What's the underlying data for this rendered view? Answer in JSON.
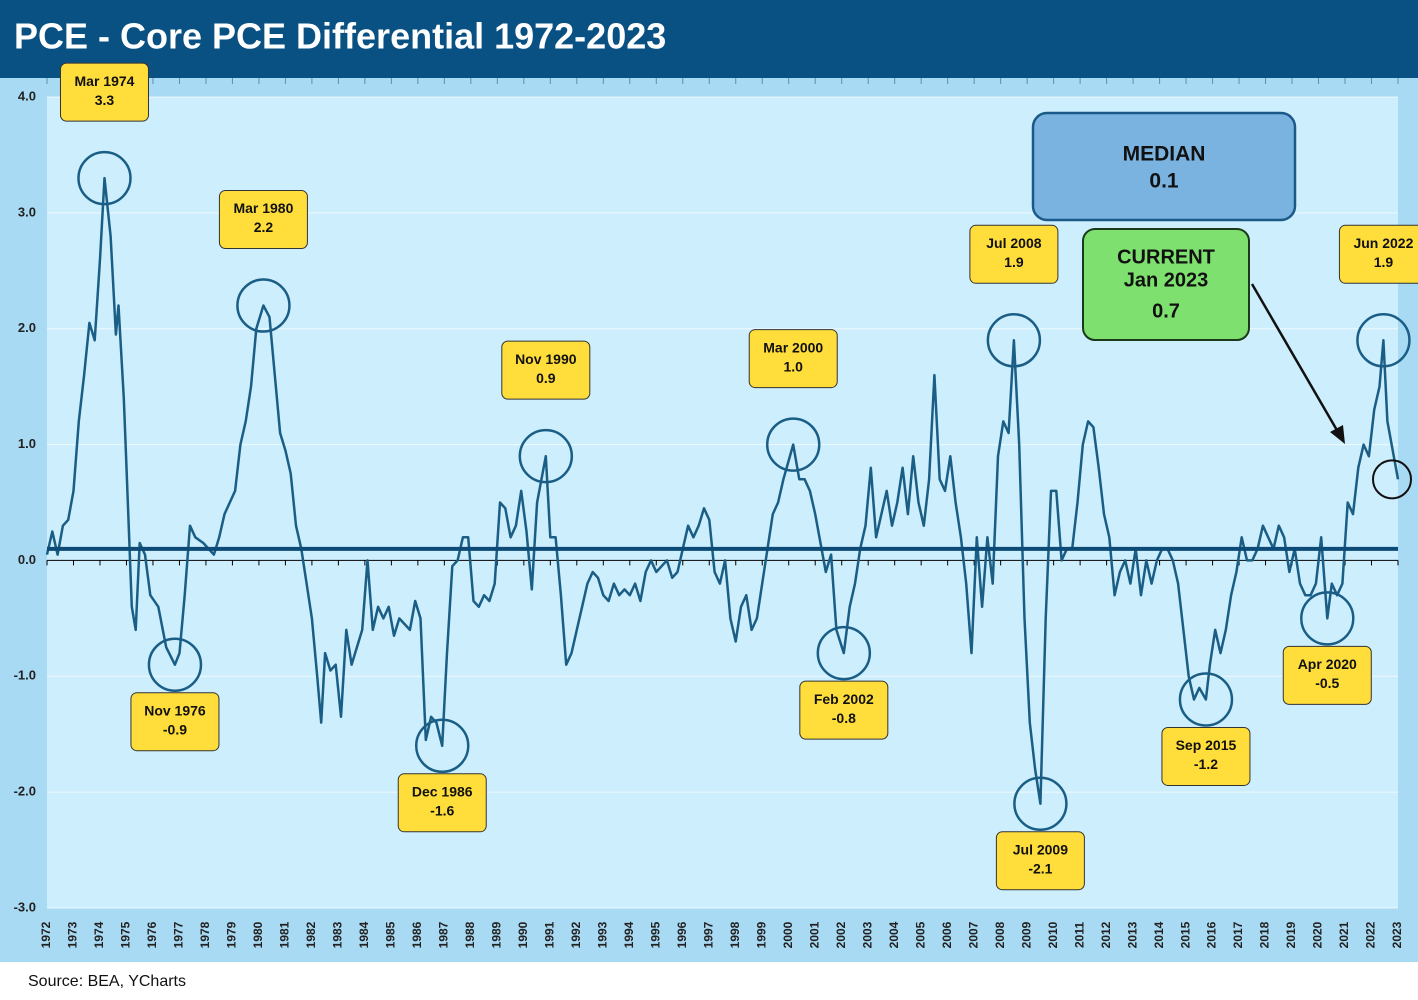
{
  "chart_data": {
    "type": "line",
    "title": "PCE - Core PCE Differential 1972-2023",
    "source": "Source: BEA, YCharts",
    "xlim": [
      1972,
      2023
    ],
    "xticks": [
      1972,
      1973,
      1974,
      1975,
      1976,
      1977,
      1978,
      1979,
      1980,
      1981,
      1982,
      1983,
      1984,
      1985,
      1986,
      1987,
      1988,
      1989,
      1990,
      1991,
      1992,
      1993,
      1994,
      1995,
      1996,
      1997,
      1998,
      1999,
      2000,
      2001,
      2002,
      2003,
      2004,
      2005,
      2006,
      2007,
      2008,
      2009,
      2010,
      2011,
      2012,
      2013,
      2014,
      2015,
      2016,
      2017,
      2018,
      2019,
      2020,
      2021,
      2022,
      2023
    ],
    "ylim": [
      -3,
      4
    ],
    "yticks": [
      {
        "value": -3,
        "label": "-3.0"
      },
      {
        "value": -2,
        "label": "-2.0"
      },
      {
        "value": -1,
        "label": "-1.0"
      },
      {
        "value": 0,
        "label": "0.0"
      },
      {
        "value": 1,
        "label": "1.0"
      },
      {
        "value": 2,
        "label": "2.0"
      },
      {
        "value": 3,
        "label": "3.0"
      },
      {
        "value": 4,
        "label": "4.0"
      }
    ],
    "series": [
      {
        "color": "#1a5e86",
        "x": [
          1972.0,
          1972.2,
          1972.4,
          1972.6,
          1972.8,
          1973.0,
          1973.2,
          1973.4,
          1973.6,
          1973.8,
          1974.0,
          1974.17,
          1974.4,
          1974.6,
          1974.7,
          1974.9,
          1975.0,
          1975.2,
          1975.35,
          1975.5,
          1975.7,
          1975.9,
          1976.2,
          1976.5,
          1976.83,
          1977.0,
          1977.2,
          1977.4,
          1977.6,
          1977.9,
          1978.1,
          1978.3,
          1978.5,
          1978.7,
          1978.9,
          1979.1,
          1979.3,
          1979.5,
          1979.7,
          1979.9,
          1980.17,
          1980.4,
          1980.6,
          1980.8,
          1981.0,
          1981.2,
          1981.4,
          1981.6,
          1981.8,
          1982.0,
          1982.2,
          1982.35,
          1982.5,
          1982.7,
          1982.9,
          1983.1,
          1983.3,
          1983.5,
          1983.7,
          1983.9,
          1984.1,
          1984.3,
          1984.5,
          1984.7,
          1984.9,
          1985.1,
          1985.3,
          1985.5,
          1985.7,
          1985.9,
          1986.1,
          1986.3,
          1986.5,
          1986.7,
          1986.92,
          1987.1,
          1987.3,
          1987.5,
          1987.7,
          1987.9,
          1988.1,
          1988.3,
          1988.5,
          1988.7,
          1988.9,
          1989.1,
          1989.3,
          1989.5,
          1989.7,
          1989.9,
          1990.1,
          1990.3,
          1990.5,
          1990.83,
          1991.0,
          1991.2,
          1991.4,
          1991.6,
          1991.8,
          1992.0,
          1992.2,
          1992.4,
          1992.6,
          1992.8,
          1993.0,
          1993.2,
          1993.4,
          1993.6,
          1993.8,
          1994.0,
          1994.2,
          1994.4,
          1994.6,
          1994.8,
          1995.0,
          1995.2,
          1995.4,
          1995.6,
          1995.8,
          1996.0,
          1996.2,
          1996.4,
          1996.6,
          1996.8,
          1997.0,
          1997.2,
          1997.4,
          1997.6,
          1997.8,
          1998.0,
          1998.2,
          1998.4,
          1998.6,
          1998.8,
          1999.0,
          1999.2,
          1999.4,
          1999.6,
          1999.8,
          2000.17,
          2000.4,
          2000.6,
          2000.8,
          2001.0,
          2001.2,
          2001.4,
          2001.6,
          2001.8,
          2002.08,
          2002.3,
          2002.5,
          2002.7,
          2002.9,
          2003.1,
          2003.3,
          2003.5,
          2003.7,
          2003.9,
          2004.1,
          2004.3,
          2004.5,
          2004.7,
          2004.9,
          2005.1,
          2005.3,
          2005.5,
          2005.7,
          2005.9,
          2006.1,
          2006.3,
          2006.5,
          2006.7,
          2006.9,
          2007.1,
          2007.3,
          2007.5,
          2007.7,
          2007.9,
          2008.1,
          2008.3,
          2008.5,
          2008.7,
          2008.9,
          2009.1,
          2009.3,
          2009.5,
          2009.7,
          2009.9,
          2010.1,
          2010.3,
          2010.5,
          2010.7,
          2010.9,
          2011.1,
          2011.3,
          2011.5,
          2011.7,
          2011.9,
          2012.1,
          2012.3,
          2012.5,
          2012.7,
          2012.9,
          2013.1,
          2013.3,
          2013.5,
          2013.7,
          2013.9,
          2014.1,
          2014.3,
          2014.5,
          2014.7,
          2014.9,
          2015.1,
          2015.3,
          2015.5,
          2015.75,
          2015.9,
          2016.1,
          2016.3,
          2016.5,
          2016.7,
          2016.9,
          2017.1,
          2017.3,
          2017.5,
          2017.7,
          2017.9,
          2018.1,
          2018.3,
          2018.5,
          2018.7,
          2018.9,
          2019.1,
          2019.3,
          2019.5,
          2019.7,
          2019.9,
          2020.1,
          2020.33,
          2020.5,
          2020.7,
          2020.9,
          2021.1,
          2021.3,
          2021.5,
          2021.7,
          2021.9,
          2022.1,
          2022.3,
          2022.45,
          2022.6,
          2022.8,
          2023.0
        ],
        "values": [
          0.05,
          0.25,
          0.05,
          0.3,
          0.35,
          0.6,
          1.2,
          1.6,
          2.05,
          1.9,
          2.6,
          3.3,
          2.8,
          1.95,
          2.2,
          1.4,
          0.8,
          -0.4,
          -0.6,
          0.15,
          0.05,
          -0.3,
          -0.4,
          -0.75,
          -0.9,
          -0.8,
          -0.3,
          0.3,
          0.2,
          0.15,
          0.1,
          0.05,
          0.2,
          0.4,
          0.5,
          0.6,
          1.0,
          1.2,
          1.5,
          2.0,
          2.2,
          2.1,
          1.6,
          1.1,
          0.95,
          0.75,
          0.3,
          0.1,
          -0.2,
          -0.5,
          -1.0,
          -1.4,
          -0.8,
          -0.95,
          -0.9,
          -1.35,
          -0.6,
          -0.9,
          -0.75,
          -0.6,
          0.0,
          -0.6,
          -0.4,
          -0.5,
          -0.4,
          -0.65,
          -0.5,
          -0.55,
          -0.6,
          -0.35,
          -0.5,
          -1.55,
          -1.35,
          -1.4,
          -1.6,
          -0.8,
          -0.05,
          0.0,
          0.2,
          0.2,
          -0.35,
          -0.4,
          -0.3,
          -0.35,
          -0.2,
          0.5,
          0.45,
          0.2,
          0.3,
          0.6,
          0.25,
          -0.25,
          0.5,
          0.9,
          0.2,
          0.2,
          -0.3,
          -0.9,
          -0.8,
          -0.6,
          -0.4,
          -0.2,
          -0.1,
          -0.15,
          -0.3,
          -0.35,
          -0.2,
          -0.3,
          -0.25,
          -0.3,
          -0.2,
          -0.35,
          -0.1,
          0.0,
          -0.1,
          -0.05,
          0.0,
          -0.15,
          -0.1,
          0.1,
          0.3,
          0.2,
          0.3,
          0.45,
          0.35,
          -0.1,
          -0.2,
          0.0,
          -0.5,
          -0.7,
          -0.4,
          -0.3,
          -0.6,
          -0.5,
          -0.2,
          0.1,
          0.4,
          0.5,
          0.7,
          1.0,
          0.7,
          0.7,
          0.6,
          0.4,
          0.15,
          -0.1,
          0.05,
          -0.6,
          -0.8,
          -0.4,
          -0.2,
          0.1,
          0.3,
          0.8,
          0.2,
          0.4,
          0.6,
          0.3,
          0.5,
          0.8,
          0.4,
          0.9,
          0.5,
          0.3,
          0.7,
          1.6,
          0.7,
          0.6,
          0.9,
          0.5,
          0.2,
          -0.2,
          -0.8,
          0.2,
          -0.4,
          0.2,
          -0.2,
          0.9,
          1.2,
          1.1,
          1.9,
          1.0,
          -0.5,
          -1.4,
          -1.8,
          -2.1,
          -0.5,
          0.6,
          0.6,
          0.0,
          0.1,
          0.1,
          0.5,
          1.0,
          1.2,
          1.15,
          0.8,
          0.4,
          0.2,
          -0.3,
          -0.1,
          0.0,
          -0.2,
          0.1,
          -0.3,
          0.0,
          -0.2,
          0.0,
          0.1,
          0.1,
          0.0,
          -0.2,
          -0.6,
          -1.0,
          -1.2,
          -1.1,
          -1.2,
          -0.9,
          -0.6,
          -0.8,
          -0.6,
          -0.3,
          -0.1,
          0.2,
          0.0,
          0.0,
          0.1,
          0.3,
          0.2,
          0.1,
          0.3,
          0.2,
          -0.1,
          0.1,
          -0.2,
          -0.3,
          -0.3,
          -0.2,
          0.2,
          -0.5,
          -0.2,
          -0.3,
          -0.2,
          0.5,
          0.4,
          0.8,
          1.0,
          0.9,
          1.3,
          1.5,
          1.9,
          1.2,
          0.95,
          0.7
        ]
      }
    ],
    "annotations": [
      {
        "label": "Mar 1974",
        "x": 1974.17,
        "value": 3.3
      },
      {
        "label": "Nov 1976",
        "x": 1976.83,
        "value": -0.9
      },
      {
        "label": "Mar 1980",
        "x": 1980.17,
        "value": 2.2
      },
      {
        "label": "Dec 1986",
        "x": 1986.92,
        "value": -1.6
      },
      {
        "label": "Nov 1990",
        "x": 1990.83,
        "value": 0.9
      },
      {
        "label": "Mar 2000",
        "x": 2000.17,
        "value": 1,
        "value_label": "1.0"
      },
      {
        "label": "Feb 2002",
        "x": 2002.08,
        "value": -0.8
      },
      {
        "label": "Jul 2008",
        "x": 2008.5,
        "value": 1.9
      },
      {
        "label": "Jul 2009",
        "x": 2009.5,
        "value": -2.1
      },
      {
        "label": "Sep 2015",
        "x": 2015.75,
        "value": -1.2
      },
      {
        "label": "Apr 2020",
        "x": 2020.33,
        "value": -0.5
      },
      {
        "label": "Jun 2022",
        "x": 2022.45,
        "value": 1.9
      }
    ],
    "median": {
      "label": "MEDIAN",
      "value": 0.1
    },
    "current": {
      "label": "CURRENT",
      "date": "Jan 2023",
      "x": 2023.0,
      "value": 0.7
    }
  }
}
